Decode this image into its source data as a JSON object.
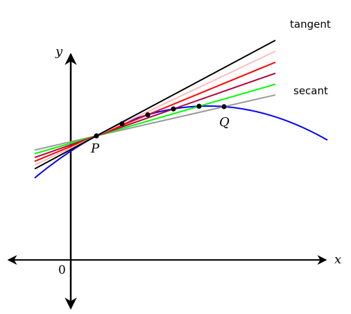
{
  "labels": {
    "tangent": "tangent",
    "secant": "secant",
    "x_axis": "x",
    "y_axis": "y",
    "origin": "0",
    "point_p": "P",
    "point_q": "Q"
  },
  "colors": {
    "axis": "#000000",
    "curve": "#0000ff",
    "tangent_line": "#000000",
    "secant_line": "#999999",
    "secant_lines": [
      "#999999",
      "#00ff00",
      "#b3003c",
      "#ff0000",
      "#ffbbbb"
    ],
    "points": "#000000"
  },
  "secant_order": [
    "grey",
    "green",
    "crimson",
    "red",
    "pink"
  ]
}
